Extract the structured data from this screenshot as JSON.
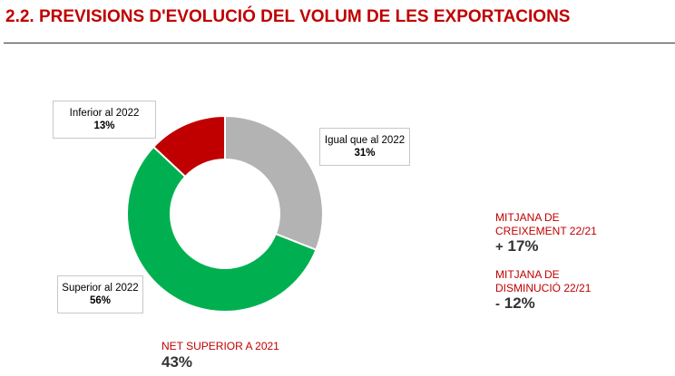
{
  "header": {
    "title": "2.2. PREVISIONS D'EVOLUCIÓ DEL VOLUM DE LES EXPORTACIONS"
  },
  "chart_data": {
    "type": "pie",
    "donut": true,
    "slices": [
      {
        "label": "Igual que al 2022",
        "value": 31,
        "value_text": "31%",
        "color": "#b3b3b3"
      },
      {
        "label": "Superior al 2022",
        "value": 56,
        "value_text": "56%",
        "color": "#00b050"
      },
      {
        "label": "Inferior al 2022",
        "value": 13,
        "value_text": "13%",
        "color": "#c00000"
      }
    ],
    "start_angle_deg": 0,
    "direction": "clockwise"
  },
  "kpis": {
    "growth": {
      "label_line1": "MITJANA DE",
      "label_line2": "CREIXEMENT 22/21",
      "sign": "+",
      "value": "17%"
    },
    "decrease": {
      "label_line1": "MITJANA DE",
      "label_line2": "DISMINUCIÓ 22/21",
      "sign": "-",
      "value": "12%"
    },
    "net": {
      "label": "NET SUPERIOR A  2021",
      "value": "43%"
    }
  },
  "colors": {
    "accent": "#c00000",
    "text_dark": "#333333"
  }
}
